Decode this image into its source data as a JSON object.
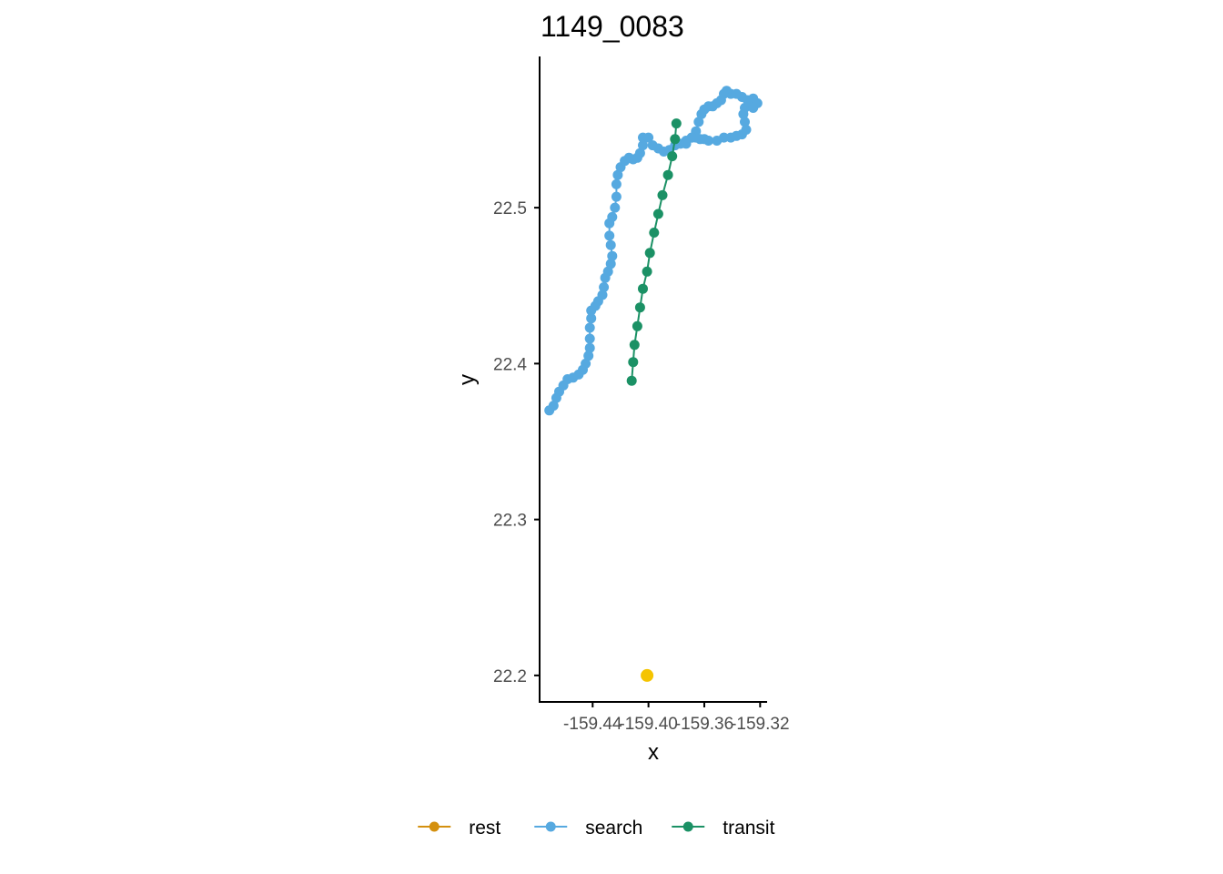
{
  "chart_data": {
    "type": "scatter",
    "title": "1149_0083",
    "xlabel": "x",
    "ylabel": "y",
    "xlim": [
      -159.478,
      -159.315
    ],
    "ylim": [
      22.183,
      22.597
    ],
    "x_ticks": [
      {
        "value": -159.44,
        "label": "-159.44"
      },
      {
        "value": -159.4,
        "label": "-159.40"
      },
      {
        "value": -159.36,
        "label": "-159.36"
      },
      {
        "value": -159.32,
        "label": "-159.32"
      }
    ],
    "y_ticks": [
      {
        "value": 22.2,
        "label": "22.2"
      },
      {
        "value": 22.3,
        "label": "22.3"
      },
      {
        "value": 22.4,
        "label": "22.4"
      },
      {
        "value": 22.5,
        "label": "22.5"
      }
    ],
    "grid": false,
    "legend_position": "bottom",
    "series": [
      {
        "name": "rest",
        "color": "#D4900F",
        "connected": true,
        "points": [
          [
            -159.3245,
            22.5665
          ],
          [
            -159.324,
            22.567
          ]
        ]
      },
      {
        "name": "search",
        "color": "#56A9E0",
        "connected": true,
        "points": [
          [
            -159.471,
            22.37
          ],
          [
            -159.468,
            22.373
          ],
          [
            -159.466,
            22.378
          ],
          [
            -159.464,
            22.382
          ],
          [
            -159.461,
            22.386
          ],
          [
            -159.458,
            22.39
          ],
          [
            -159.454,
            22.391
          ],
          [
            -159.45,
            22.393
          ],
          [
            -159.447,
            22.396
          ],
          [
            -159.445,
            22.4
          ],
          [
            -159.443,
            22.405
          ],
          [
            -159.442,
            22.41
          ],
          [
            -159.442,
            22.416
          ],
          [
            -159.442,
            22.423
          ],
          [
            -159.441,
            22.429
          ],
          [
            -159.441,
            22.434
          ],
          [
            -159.438,
            22.437
          ],
          [
            -159.436,
            22.44
          ],
          [
            -159.433,
            22.444
          ],
          [
            -159.432,
            22.449
          ],
          [
            -159.431,
            22.455
          ],
          [
            -159.429,
            22.459
          ],
          [
            -159.427,
            22.464
          ],
          [
            -159.426,
            22.469
          ],
          [
            -159.427,
            22.476
          ],
          [
            -159.428,
            22.482
          ],
          [
            -159.428,
            22.49
          ],
          [
            -159.426,
            22.494
          ],
          [
            -159.424,
            22.5
          ],
          [
            -159.423,
            22.507
          ],
          [
            -159.423,
            22.515
          ],
          [
            -159.422,
            22.521
          ],
          [
            -159.42,
            22.526
          ],
          [
            -159.417,
            22.53
          ],
          [
            -159.414,
            22.532
          ],
          [
            -159.411,
            22.531
          ],
          [
            -159.408,
            22.532
          ],
          [
            -159.406,
            22.535
          ],
          [
            -159.404,
            22.54
          ],
          [
            -159.404,
            22.545
          ],
          [
            -159.4,
            22.545
          ],
          [
            -159.397,
            22.54
          ],
          [
            -159.393,
            22.538
          ],
          [
            -159.389,
            22.536
          ],
          [
            -159.385,
            22.537
          ],
          [
            -159.381,
            22.54
          ],
          [
            -159.377,
            22.541
          ],
          [
            -159.373,
            22.543
          ],
          [
            -159.369,
            22.545
          ],
          [
            -159.366,
            22.545
          ],
          [
            -159.363,
            22.544
          ],
          [
            -159.36,
            22.544
          ],
          [
            -159.357,
            22.543
          ],
          [
            -159.351,
            22.543
          ],
          [
            -159.346,
            22.545
          ],
          [
            -159.341,
            22.545
          ],
          [
            -159.337,
            22.546
          ],
          [
            -159.333,
            22.547
          ],
          [
            -159.33,
            22.55
          ],
          [
            -159.331,
            22.555
          ],
          [
            -159.332,
            22.56
          ],
          [
            -159.331,
            22.564
          ],
          [
            -159.328,
            22.568
          ],
          [
            -159.325,
            22.57
          ],
          [
            -159.322,
            22.567
          ],
          [
            -159.325,
            22.564
          ],
          [
            -159.329,
            22.569
          ],
          [
            -159.333,
            22.571
          ],
          [
            -159.337,
            22.573
          ],
          [
            -159.341,
            22.573
          ],
          [
            -159.344,
            22.575
          ],
          [
            -159.346,
            22.573
          ],
          [
            -159.348,
            22.569
          ],
          [
            -159.351,
            22.567
          ],
          [
            -159.354,
            22.565
          ],
          [
            -159.357,
            22.565
          ],
          [
            -159.36,
            22.563
          ],
          [
            -159.362,
            22.56
          ],
          [
            -159.364,
            22.555
          ],
          [
            -159.366,
            22.549
          ],
          [
            -159.369,
            22.545
          ],
          [
            -159.373,
            22.541
          ]
        ]
      },
      {
        "name": "transit",
        "color": "#1B9165",
        "connected": true,
        "points": [
          [
            -159.412,
            22.389
          ],
          [
            -159.411,
            22.401
          ],
          [
            -159.41,
            22.412
          ],
          [
            -159.408,
            22.424
          ],
          [
            -159.406,
            22.436
          ],
          [
            -159.404,
            22.448
          ],
          [
            -159.401,
            22.459
          ],
          [
            -159.399,
            22.471
          ],
          [
            -159.396,
            22.484
          ],
          [
            -159.393,
            22.496
          ],
          [
            -159.39,
            22.508
          ],
          [
            -159.386,
            22.521
          ],
          [
            -159.383,
            22.533
          ],
          [
            -159.381,
            22.544
          ],
          [
            -159.38,
            22.554
          ]
        ]
      },
      {
        "color": "#F5C400",
        "connected": false,
        "points": [
          [
            -159.401,
            22.2
          ]
        ]
      }
    ]
  }
}
